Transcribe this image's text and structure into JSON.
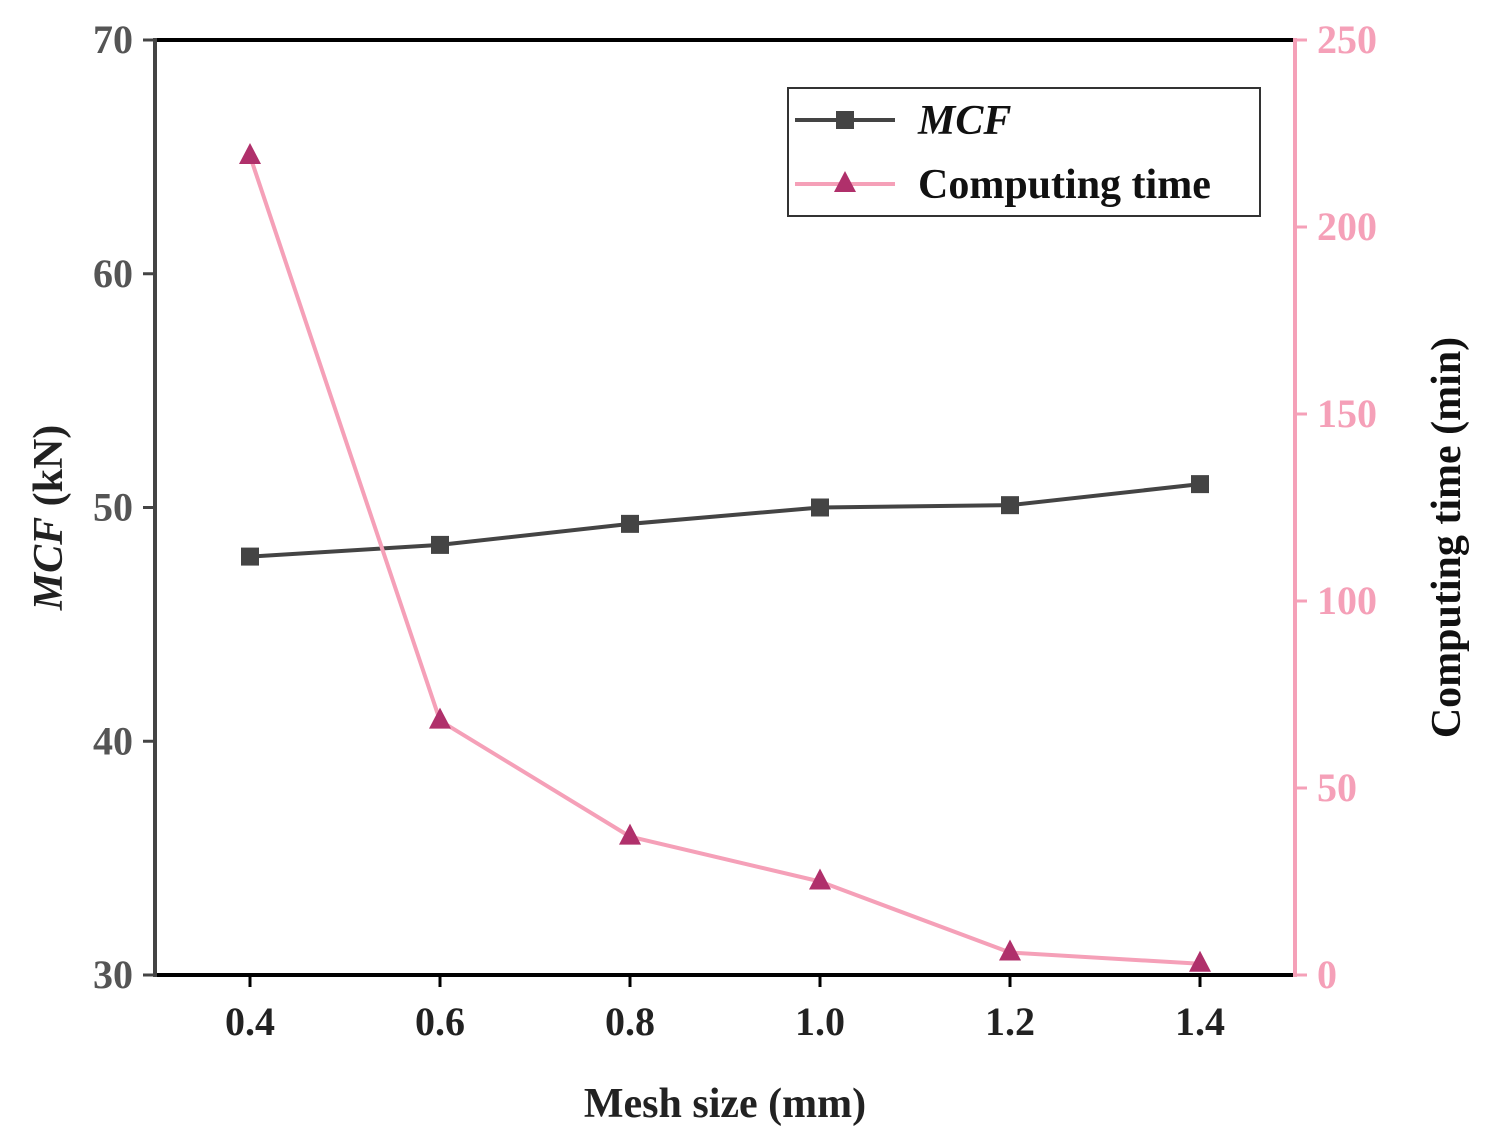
{
  "chart_data": {
    "type": "line",
    "title": "",
    "x": [
      0.4,
      0.6,
      0.8,
      1.0,
      1.2,
      1.4
    ],
    "x_tick_labels": [
      "0.4",
      "0.6",
      "0.8",
      "1.0",
      "1.2",
      "1.4"
    ],
    "xlabel": "Mesh size (mm)",
    "xlim": [
      0.3,
      1.5
    ],
    "ylabel_left_italic": "MCF",
    "ylabel_left_rest": " (kN)",
    "ylim_left": [
      30,
      70
    ],
    "y_left_ticks": [
      30,
      40,
      50,
      60,
      70
    ],
    "ylabel_right": "Computing time (min)",
    "ylim_right": [
      0,
      250
    ],
    "y_right_ticks": [
      0,
      50,
      100,
      150,
      200,
      250
    ],
    "series": [
      {
        "name": "MCF",
        "axis": "left",
        "marker": "square",
        "color": "#444444",
        "values": [
          47.9,
          48.4,
          49.3,
          50.0,
          50.1,
          51.0
        ]
      },
      {
        "name": "Computing time",
        "axis": "right",
        "marker": "triangle",
        "color": "#f5a0b8",
        "marker_color": "#b0306b",
        "values": [
          219,
          68,
          37,
          25,
          6,
          3
        ]
      }
    ],
    "legend": {
      "position": "top-right",
      "entries": [
        {
          "label": "MCF",
          "italic": true
        },
        {
          "label": "Computing time",
          "italic": false
        }
      ]
    },
    "colors": {
      "left_axis": "#444444",
      "right_axis": "#f5a0b8",
      "frame": "#000000"
    }
  }
}
